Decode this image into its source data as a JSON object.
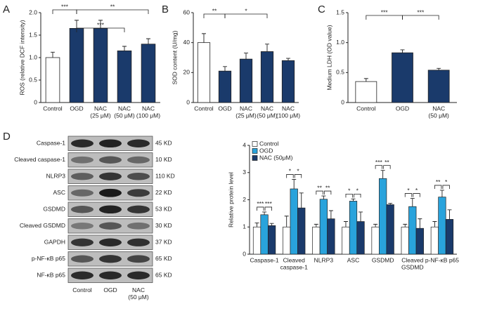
{
  "chart_data": [
    {
      "type": "bar",
      "panel": "A",
      "ylabel": "ROS (relative DCF intensity)",
      "categories": [
        [
          "Control"
        ],
        [
          "OGD"
        ],
        [
          "NAC",
          "(25 μM)"
        ],
        [
          "NAC",
          "(50 μM)"
        ],
        [
          "NAC",
          "(100 μM)"
        ]
      ],
      "values": [
        1.0,
        1.65,
        1.65,
        1.15,
        1.3
      ],
      "errors": [
        0.12,
        0.18,
        0.18,
        0.1,
        0.12
      ],
      "colors": [
        "#ffffff",
        "#1a3a6b",
        "#1a3a6b",
        "#1a3a6b",
        "#1a3a6b"
      ],
      "ylim": [
        0,
        2
      ],
      "yticks": [
        0,
        0.5,
        {
          "value": 1,
          "label": "1.0"
        },
        1.5,
        {
          "value": 2,
          "label": "2.0"
        }
      ],
      "annotations": [
        "***",
        "**",
        "***"
      ]
    },
    {
      "type": "bar",
      "panel": "B",
      "ylabel": "SOD content (U/mg)",
      "categories": [
        [
          "Control"
        ],
        [
          "OGD"
        ],
        [
          "NAC",
          "(25 μM)"
        ],
        [
          "NAC",
          "(50 μM)"
        ],
        [
          "NAC",
          "(100 μM)"
        ]
      ],
      "values": [
        40,
        21,
        29,
        34,
        28
      ],
      "errors": [
        6,
        3,
        4,
        5,
        1.5
      ],
      "colors": [
        "#ffffff",
        "#1a3a6b",
        "#1a3a6b",
        "#1a3a6b",
        "#1a3a6b"
      ],
      "ylim": [
        0,
        60
      ],
      "yticks": [
        0,
        20,
        40,
        60
      ],
      "annotations": [
        "**",
        "*"
      ]
    },
    {
      "type": "bar",
      "panel": "C",
      "ylabel": "Medium LDH (OD value)",
      "categories": [
        [
          "Control"
        ],
        [
          "OGD"
        ],
        [
          "NAC",
          "(50 μM)"
        ]
      ],
      "values": [
        0.35,
        0.83,
        0.54
      ],
      "errors": [
        0.05,
        0.05,
        0.03
      ],
      "colors": [
        "#ffffff",
        "#1a3a6b",
        "#1a3a6b"
      ],
      "ylim": [
        0,
        1.5
      ],
      "yticks": [
        0,
        0.5,
        {
          "value": 1,
          "label": "1.0"
        },
        1.5
      ],
      "annotations": [
        "***",
        "***"
      ]
    },
    {
      "type": "grouped_bar",
      "ylabel": "Relative protein level",
      "categories": [
        [
          "Caspase-1"
        ],
        [
          "Cleaved",
          "caspase-1"
        ],
        [
          "NLRP3"
        ],
        [
          "ASC"
        ],
        [
          "GSDMD"
        ],
        [
          "Cleaved",
          "GSDMD"
        ],
        [
          "p-NF-κB p65"
        ]
      ],
      "series": [
        {
          "name": "Control",
          "color": "#ffffff",
          "values": [
            1,
            1,
            1,
            1,
            1,
            1,
            1
          ],
          "errors": [
            0.15,
            0.4,
            0.1,
            0.2,
            0.1,
            0.1,
            0.2
          ]
        },
        {
          "name": "OGD",
          "color": "#29a3dc",
          "values": [
            1.45,
            2.4,
            2.02,
            1.95,
            2.78,
            1.75,
            2.1
          ],
          "errors": [
            0.1,
            0.35,
            0.12,
            0.08,
            0.3,
            0.3,
            0.25
          ]
        },
        {
          "name": "NAC (50μM)",
          "color": "#1a3a6b",
          "values": [
            1.05,
            1.7,
            1.3,
            1.2,
            1.82,
            0.95,
            1.28
          ],
          "errors": [
            0.08,
            0.55,
            0.3,
            0.35,
            0.05,
            0.35,
            0.35
          ]
        }
      ],
      "ylim": [
        0,
        4
      ],
      "yticks": [
        0,
        1,
        2,
        3,
        4
      ],
      "legend": "top-left",
      "annotations": [
        [
          "***",
          "***"
        ],
        [
          "*",
          "*"
        ],
        [
          "**",
          "**"
        ],
        [
          "*",
          "*"
        ],
        [
          "***",
          "**"
        ],
        [
          "*",
          "*"
        ],
        [
          "**",
          "*"
        ]
      ]
    }
  ],
  "blot": {
    "panel": "D",
    "rows": [
      {
        "name": "Caspase-1",
        "size": "45 KD"
      },
      {
        "name": "Cleaved caspase-1",
        "size": "10 KD"
      },
      {
        "name": "NLRP3",
        "size": "110 KD"
      },
      {
        "name": "ASC",
        "size": "22 KD"
      },
      {
        "name": "GSDMD",
        "size": "53 KD"
      },
      {
        "name": "Cleaved GSDMD",
        "size": "30 KD"
      },
      {
        "name": "GAPDH",
        "size": "37 KD"
      },
      {
        "name": "p-NF-κB p65",
        "size": "65 KD"
      },
      {
        "name": "NF-κB p65",
        "size": "65 KD"
      }
    ],
    "columns": [
      [
        "Control"
      ],
      [
        "OGD"
      ],
      [
        "NAC",
        "(50 μM)"
      ]
    ]
  }
}
